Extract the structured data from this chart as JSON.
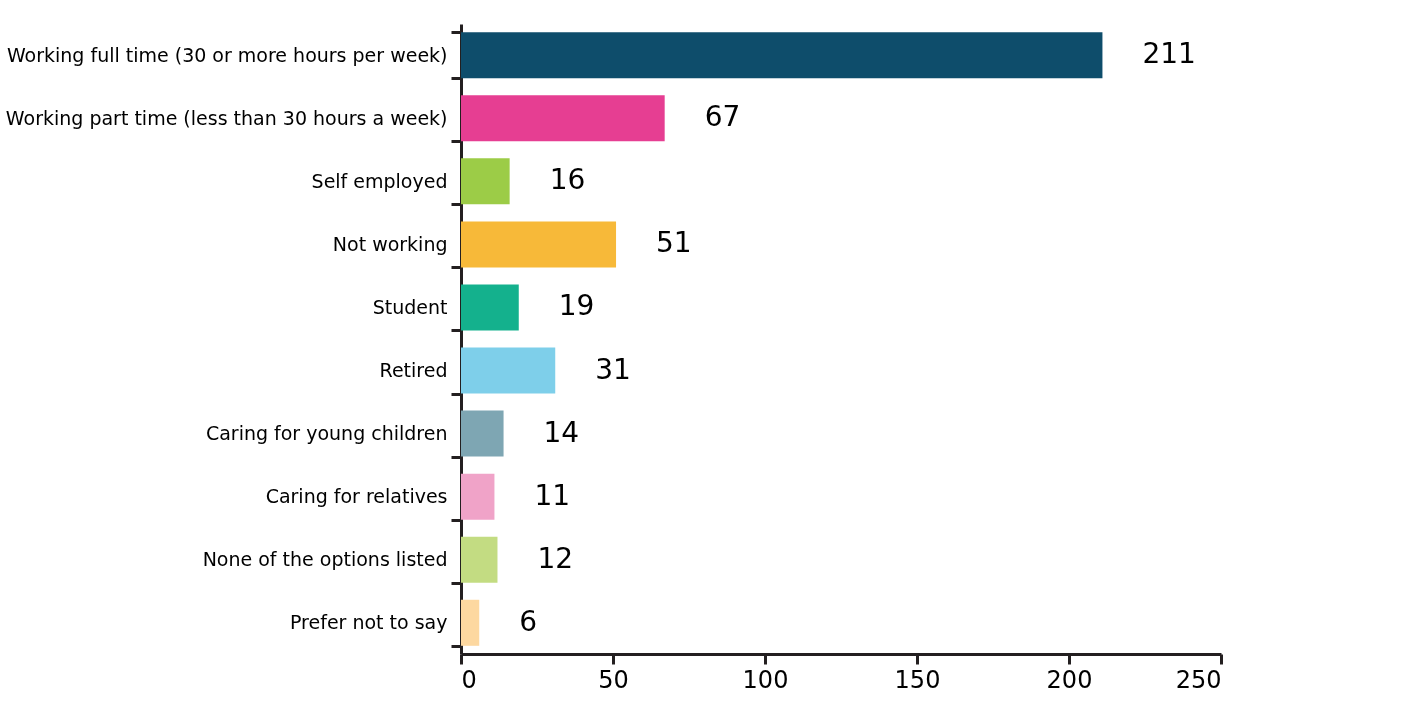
{
  "chart_data": {
    "type": "bar",
    "orientation": "horizontal",
    "categories": [
      "Working full time (30 or more hours per week)",
      "Working part time (less than 30 hours a week)",
      "Self employed",
      "Not working",
      "Student",
      "Retired",
      "Caring for young children",
      "Caring for relatives",
      "None of the options listed",
      "Prefer not to say"
    ],
    "values": [
      211,
      67,
      16,
      51,
      19,
      31,
      14,
      11,
      12,
      6
    ],
    "colors": [
      "#0e4d6b",
      "#e63e92",
      "#9ccc47",
      "#f7b939",
      "#14b18d",
      "#7ecfea",
      "#7ea6b3",
      "#f0a3c8",
      "#c3dc82",
      "#fdd8a0"
    ],
    "xlim": [
      0,
      250
    ],
    "xticks": [
      0,
      50,
      100,
      150,
      200,
      250
    ],
    "data_labels": true,
    "grid": false
  }
}
